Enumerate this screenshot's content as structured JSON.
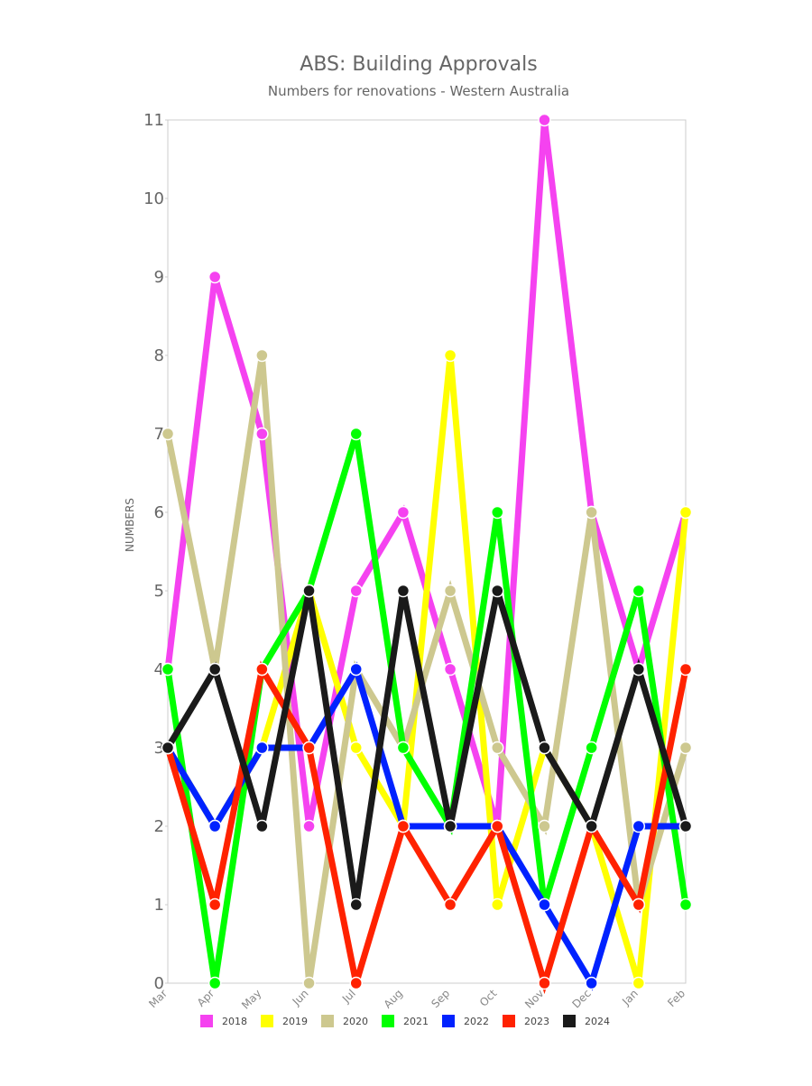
{
  "chart_data": {
    "type": "line",
    "title": "ABS: Building Approvals",
    "subtitle": "Numbers for renovations - Western Australia",
    "y_label": "NUMBERS",
    "categories": [
      "Mar",
      "Apr",
      "May",
      "Jun",
      "Jul",
      "Aug",
      "Sep",
      "Oct",
      "Nov",
      "Dec",
      "Jan",
      "Feb"
    ],
    "series": [
      {
        "name": "2018",
        "color": "#f542f0",
        "values": [
          4,
          9,
          7,
          2,
          5,
          6,
          4,
          2,
          11,
          6,
          4,
          6
        ]
      },
      {
        "name": "2019",
        "color": "#ffff00",
        "values": [
          3,
          2,
          3,
          5,
          3,
          2,
          8,
          1,
          3,
          2,
          0,
          6
        ]
      },
      {
        "name": "2020",
        "color": "#cdc88f",
        "values": [
          7,
          4,
          8,
          0,
          4,
          3,
          5,
          3,
          2,
          6,
          1,
          3
        ]
      },
      {
        "name": "2021",
        "color": "#00ff00",
        "values": [
          4,
          0,
          4,
          5,
          7,
          3,
          2,
          6,
          1,
          3,
          5,
          1
        ]
      },
      {
        "name": "2022",
        "color": "#0022ff",
        "values": [
          3,
          2,
          3,
          3,
          4,
          2,
          2,
          2,
          1,
          0,
          2,
          2
        ]
      },
      {
        "name": "2023",
        "color": "#ff2200",
        "values": [
          3,
          1,
          4,
          3,
          0,
          2,
          1,
          2,
          0,
          2,
          1,
          4
        ]
      },
      {
        "name": "2024",
        "color": "#1a1a1a",
        "values": [
          3,
          4,
          2,
          5,
          1,
          5,
          2,
          5,
          3,
          2,
          4,
          2
        ]
      }
    ],
    "ylim": [
      0,
      11
    ],
    "yticks": [
      0,
      1,
      2,
      3,
      4,
      5,
      6,
      7,
      8,
      9,
      10,
      11
    ],
    "legend": "bottom"
  }
}
